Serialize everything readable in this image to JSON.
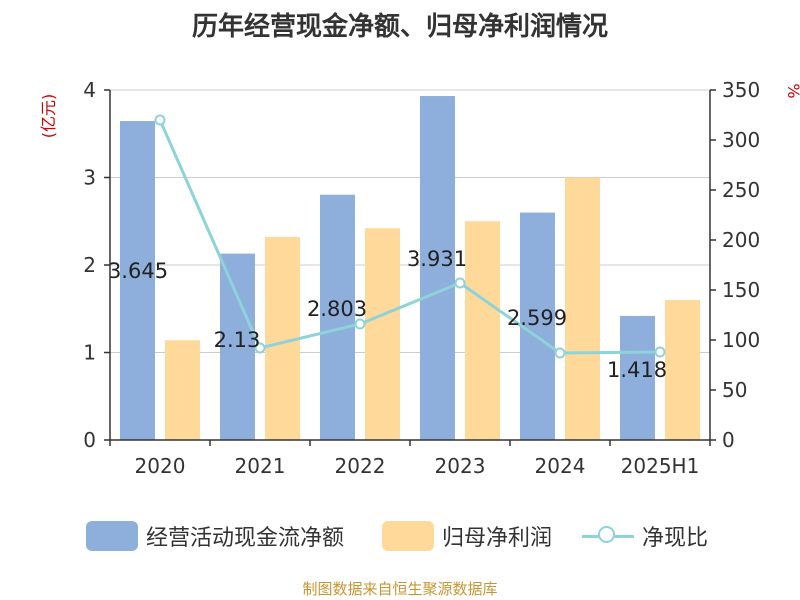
{
  "page": {
    "title": "历年经营现金净额、归母净利润情况",
    "source": "制图数据来自恒生聚源数据库"
  },
  "colors": {
    "cash_flow": "#8eaedb",
    "net_profit": "#ffd999",
    "ratio": "#8dd3d9",
    "axis_unit": "#cc0000",
    "text": "#333333",
    "source": "#c89632"
  },
  "legend": [
    {
      "name": "经营活动现金流净额",
      "type": "bar",
      "color": "#8eaedb"
    },
    {
      "name": "归母净利润",
      "type": "bar",
      "color": "#ffd999"
    },
    {
      "name": "净现比",
      "type": "line",
      "color": "#8dd3d9"
    }
  ],
  "chart_data": {
    "type": "bar",
    "title": "历年经营现金净额、归母净利润情况",
    "categories": [
      "2020",
      "2021",
      "2022",
      "2023",
      "2024",
      "2025H1"
    ],
    "y_left": {
      "label": "(亿元)",
      "min": 0,
      "max": 4,
      "ticks": [
        "0",
        "1",
        "2",
        "3",
        "4"
      ]
    },
    "y_right": {
      "label": "%",
      "min": 0,
      "max": 350,
      "ticks": [
        "0",
        "50",
        "100",
        "150",
        "200",
        "250",
        "300",
        "350"
      ]
    },
    "grid": true,
    "legend_position": "bottom",
    "series": [
      {
        "name": "经营活动现金流净额",
        "type": "bar",
        "axis": "left",
        "values": [
          3.645,
          2.13,
          2.803,
          3.931,
          2.599,
          1.418
        ],
        "labels": [
          "3.645",
          "2.13",
          "2.803",
          "3.931",
          "2.599",
          "1.418"
        ]
      },
      {
        "name": "归母净利润",
        "type": "bar",
        "axis": "left",
        "values": [
          1.14,
          2.32,
          2.42,
          2.5,
          3.0,
          1.6
        ]
      },
      {
        "name": "净现比",
        "type": "line",
        "axis": "right",
        "values": [
          320,
          92,
          116,
          157,
          87,
          88
        ]
      }
    ]
  }
}
